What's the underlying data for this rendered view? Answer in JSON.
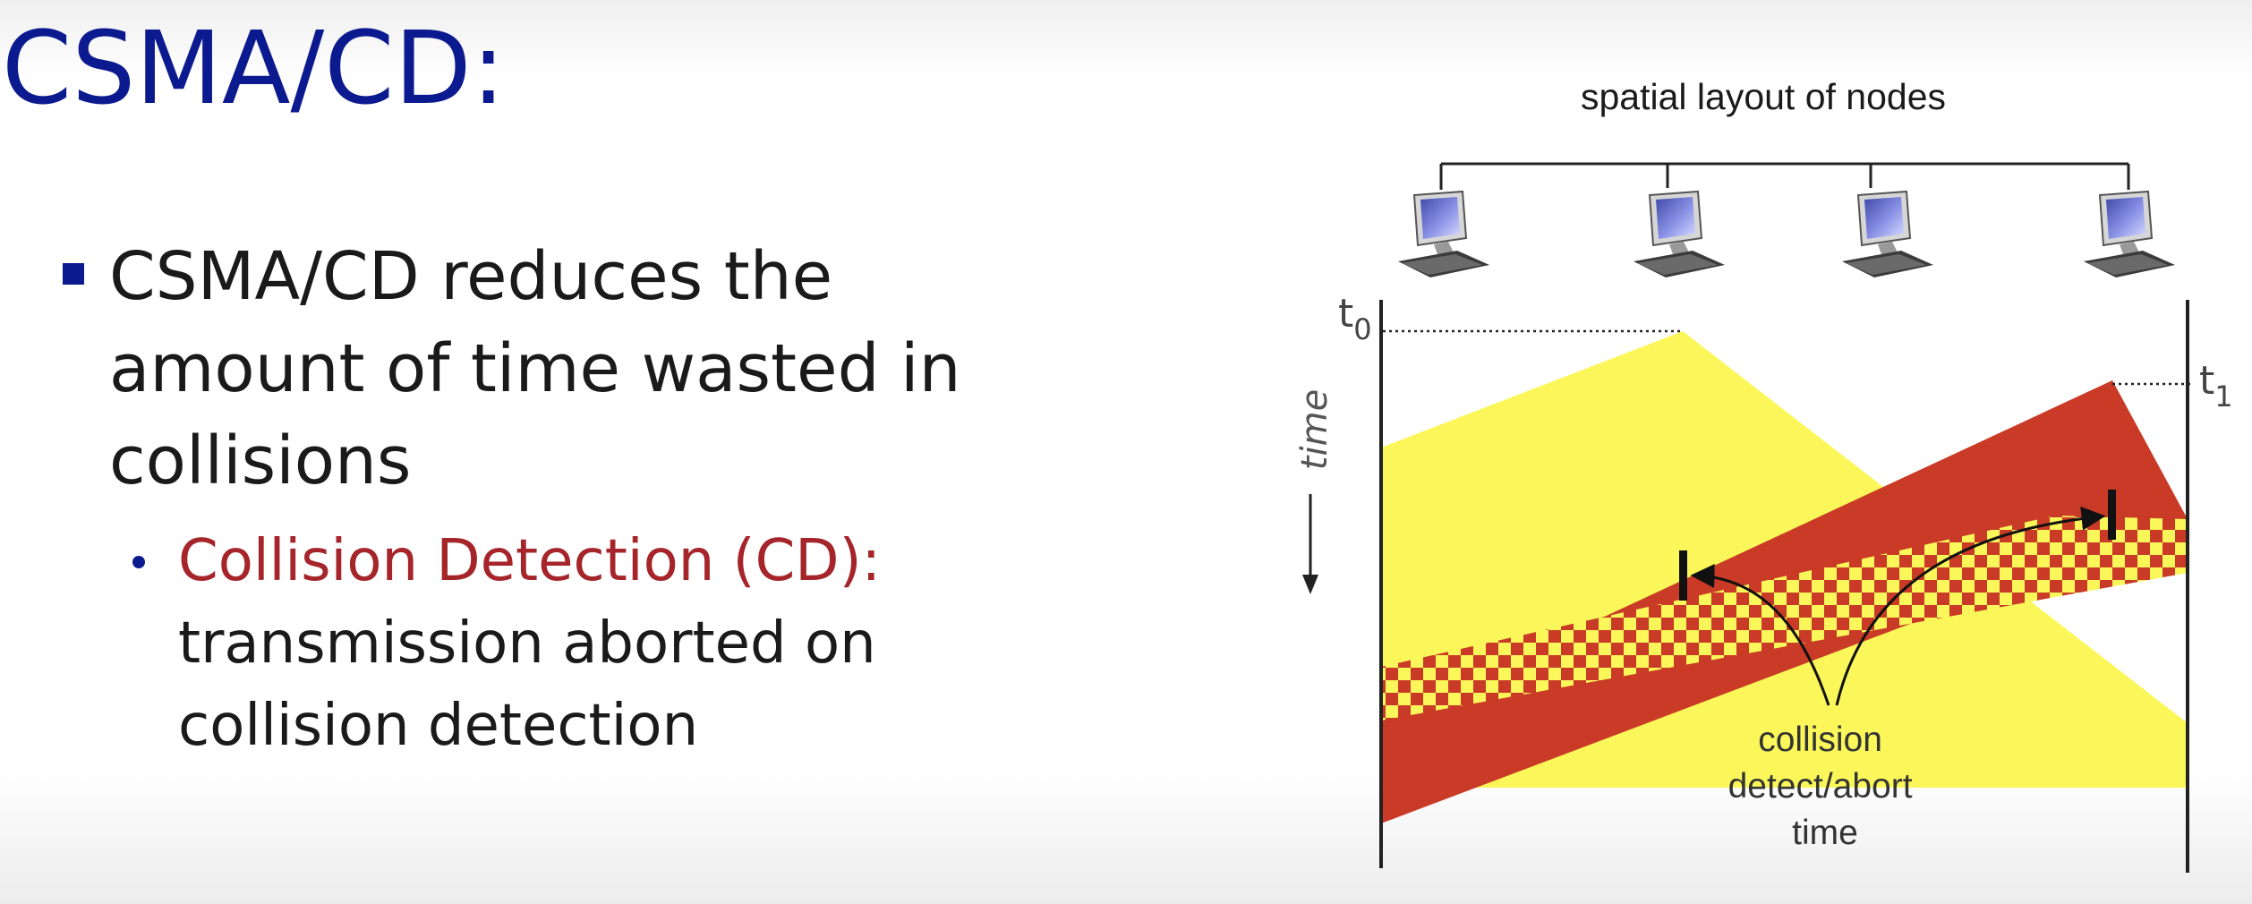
{
  "slide": {
    "title": "CSMA/CD:",
    "bullet_main": "CSMA/CD reduces the amount of time wasted in collisions",
    "sub_term": "Collision Detection (CD):",
    "sub_text": "transmission aborted on collision detection"
  },
  "figure": {
    "layout_label": "spatial layout of nodes",
    "t0_base": "t",
    "t0_sub": "0",
    "t1_base": "t",
    "t1_sub": "1",
    "time_label": "time",
    "annotation_lines": [
      "collision",
      "detect/abort",
      "time"
    ],
    "node_icon": "desktop-computer-icon",
    "colors": {
      "signal_yellow": "#fbf75a",
      "signal_red": "#c93b26",
      "axis": "#222222"
    }
  }
}
